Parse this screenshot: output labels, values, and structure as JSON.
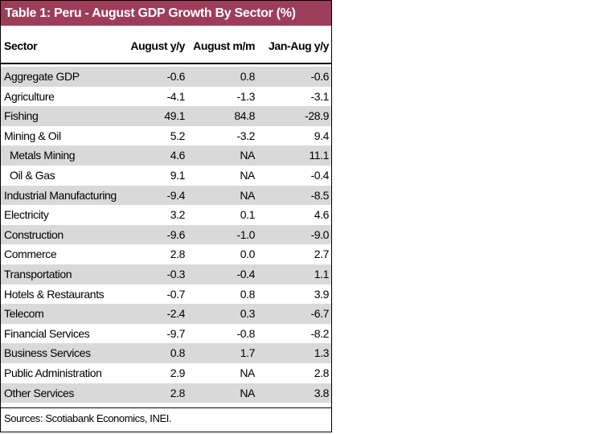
{
  "header": {
    "title": "Table 1: Peru - August GDP Growth By Sector (%)"
  },
  "table": {
    "columns": [
      "Sector",
      "August y/y",
      "August m/m",
      "Jan-Aug y/y"
    ],
    "rows": [
      [
        "Aggregate GDP",
        "-0.6",
        "0.8",
        "-0.6"
      ],
      [
        "Agriculture",
        "-4.1",
        "-1.3",
        "-3.1"
      ],
      [
        "Fishing",
        "49.1",
        "84.8",
        "-28.9"
      ],
      [
        "Mining & Oil",
        "5.2",
        "-3.2",
        "9.4"
      ],
      [
        "  Metals Mining",
        "4.6",
        "NA",
        "11.1"
      ],
      [
        "  Oil & Gas",
        "9.1",
        "NA",
        "-0.4"
      ],
      [
        "Industrial Manufacturing",
        "-9.4",
        "NA",
        "-8.5"
      ],
      [
        "Electricity",
        "3.2",
        "0.1",
        "4.6"
      ],
      [
        "Construction",
        "-9.6",
        "-1.0",
        "-9.0"
      ],
      [
        "Commerce",
        "2.8",
        "0.0",
        "2.7"
      ],
      [
        "Transportation",
        "-0.3",
        "-0.4",
        "1.1"
      ],
      [
        "Hotels & Restaurants",
        "-0.7",
        "0.8",
        "3.9"
      ],
      [
        "Telecom",
        "-2.4",
        "0.3",
        "-6.7"
      ],
      [
        "Financial Services",
        "-9.7",
        "-0.8",
        "-8.2"
      ],
      [
        "Business Services",
        "0.8",
        "1.7",
        "1.3"
      ],
      [
        "Public Administration",
        "2.9",
        "NA",
        "2.8"
      ],
      [
        "Other Services",
        "2.8",
        "NA",
        "3.8"
      ]
    ]
  },
  "footer": {
    "source": "Sources: Scotiabank Economics, INEI."
  }
}
